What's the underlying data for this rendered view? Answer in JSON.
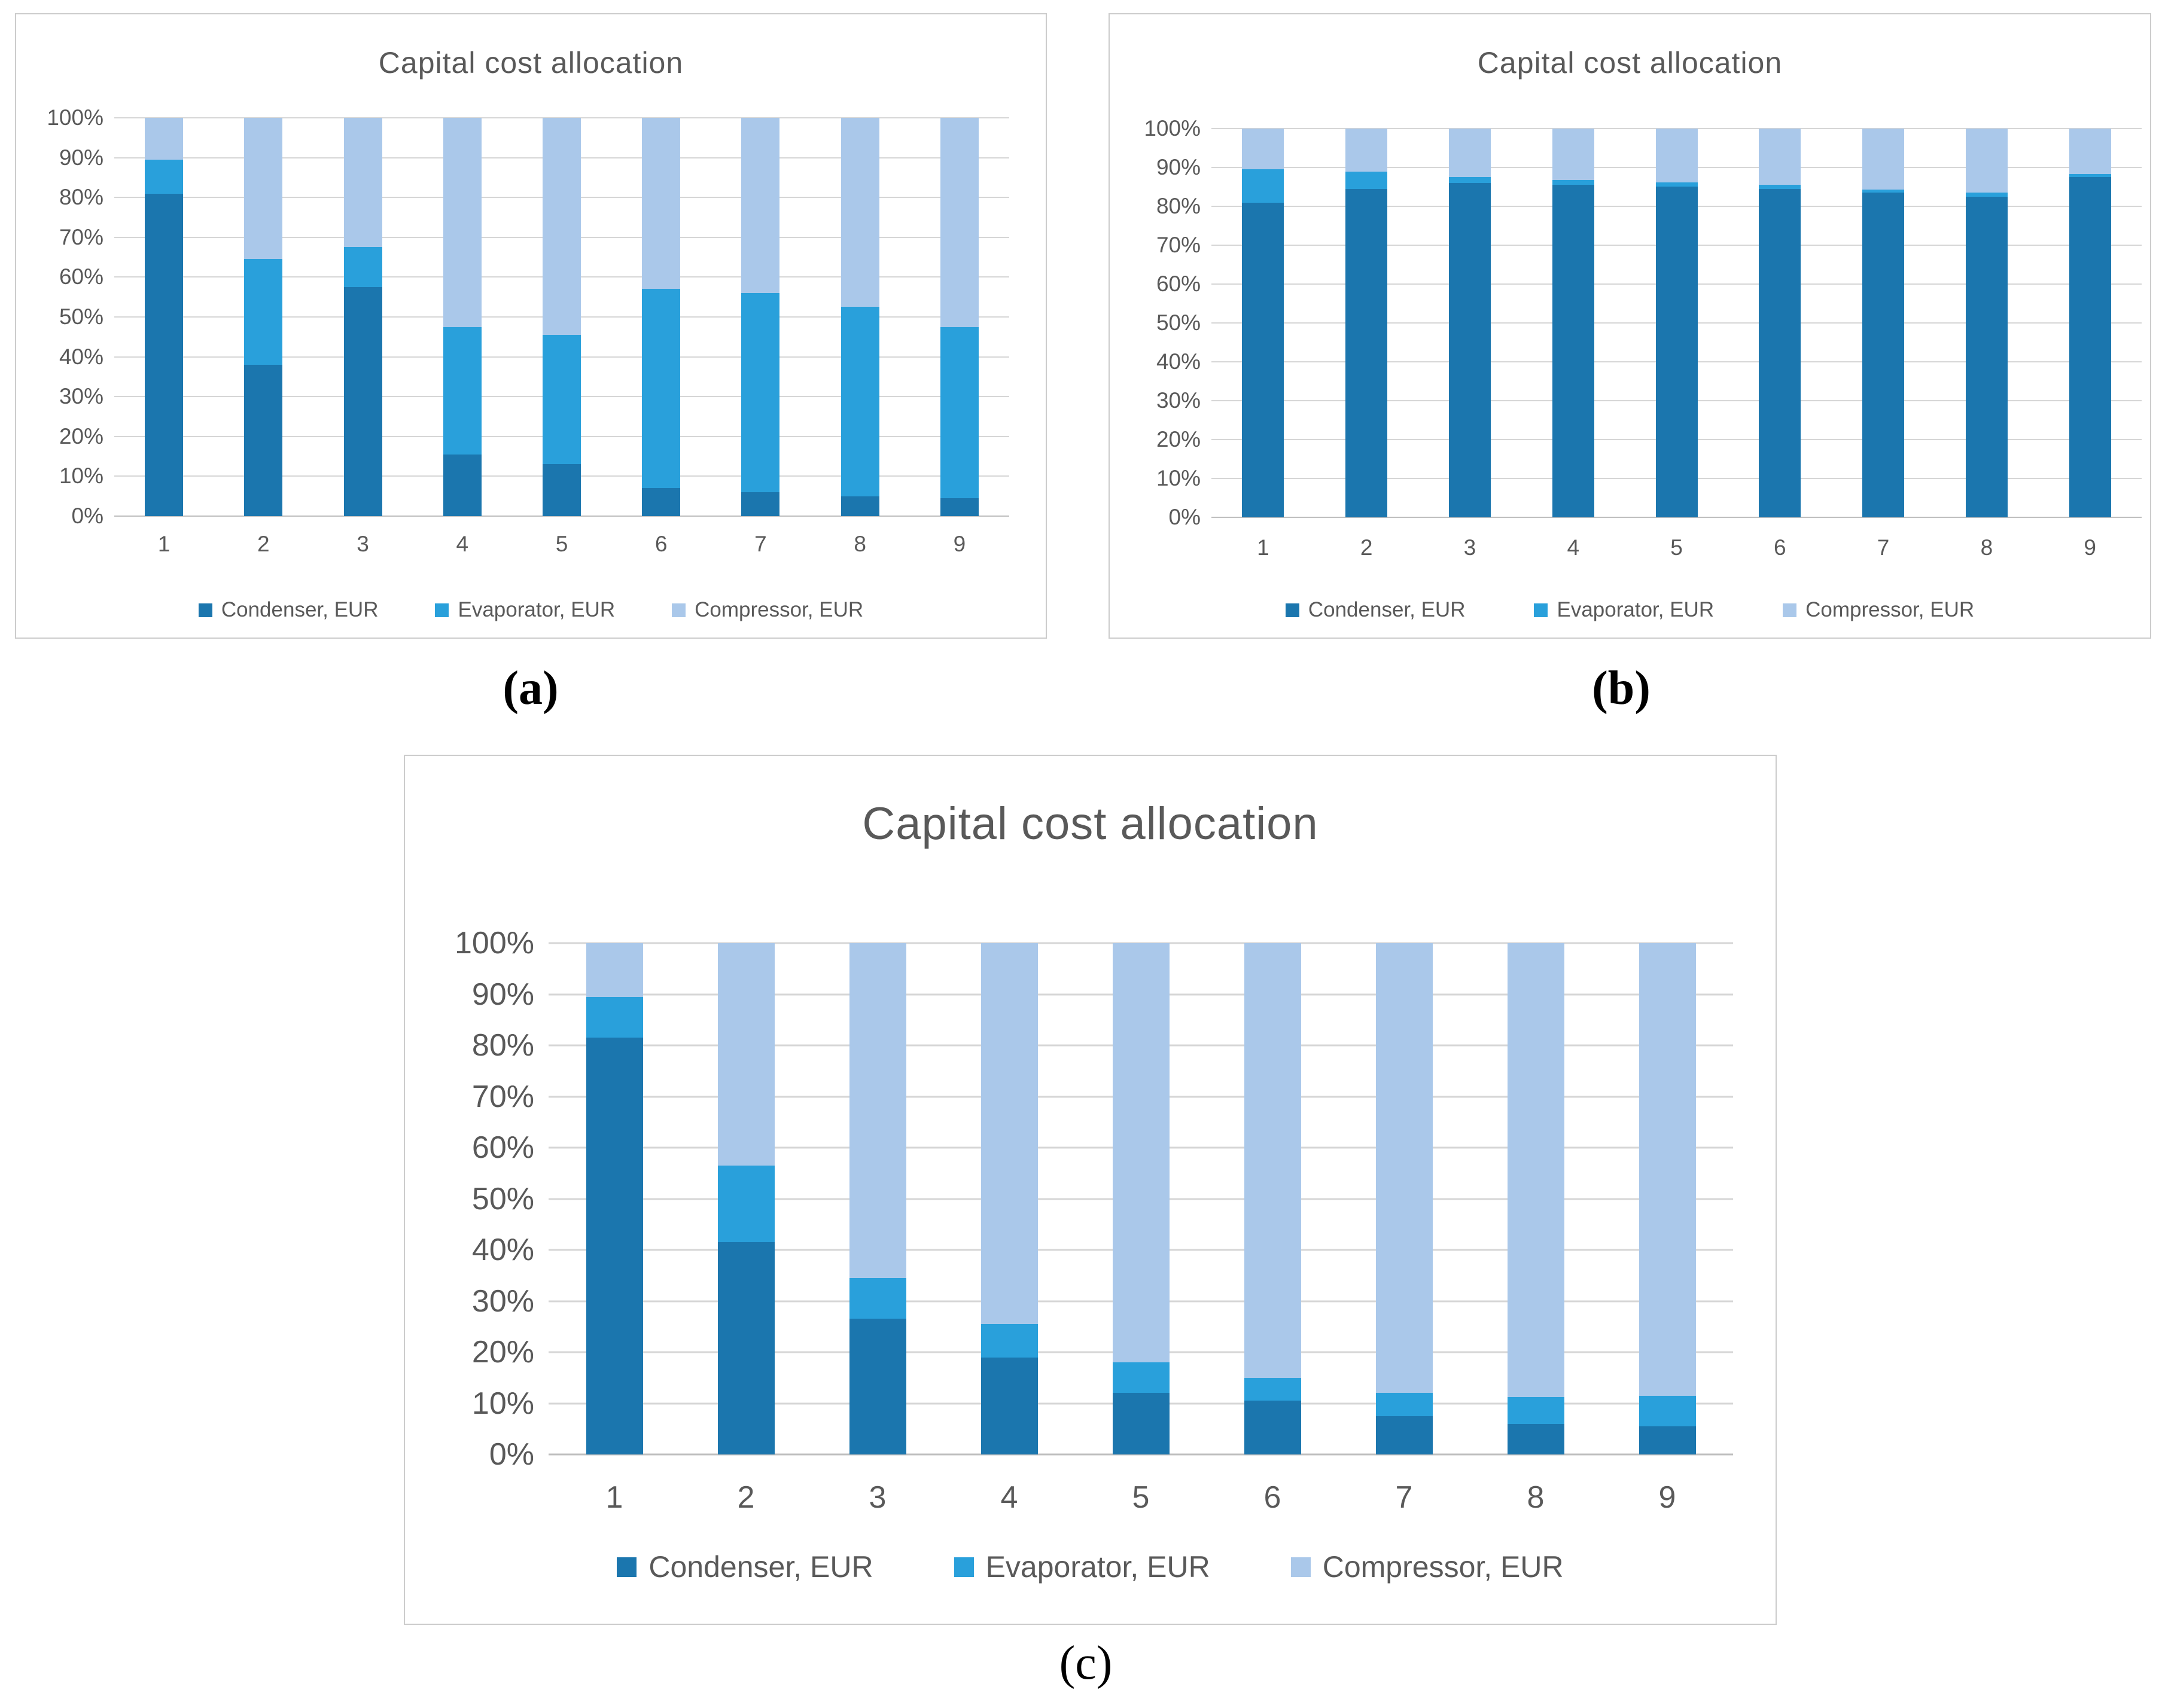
{
  "figure_labels": {
    "a": "(a)",
    "b": "(b)",
    "c": "(c)"
  },
  "colors": {
    "condenser": "#1b76ae",
    "evaporator": "#29a0db",
    "compressor": "#aac8ea",
    "gridline": "#d6d6d6",
    "axis_line": "#bfbfbf",
    "text": "#595959",
    "panel_border": "#cccccc"
  },
  "chart_data": [
    {
      "id": "a",
      "type": "bar",
      "subtype": "stacked-100-percent",
      "title": "Capital cost allocation",
      "categories": [
        "1",
        "2",
        "3",
        "4",
        "5",
        "6",
        "7",
        "8",
        "9"
      ],
      "series": [
        {
          "name": "Condenser, EUR",
          "color": "#1b76ae",
          "values": [
            81,
            38,
            57.5,
            15.5,
            13,
            7,
            6,
            5,
            4.5
          ]
        },
        {
          "name": "Evaporator, EUR",
          "color": "#29a0db",
          "values": [
            8.5,
            26.5,
            10,
            32,
            32.5,
            50,
            50,
            47.5,
            43
          ]
        },
        {
          "name": "Compressor, EUR",
          "color": "#aac8ea",
          "values": [
            10.5,
            35.5,
            32.5,
            52.5,
            54.5,
            43,
            44,
            47.5,
            52.5
          ]
        }
      ],
      "y_axis_ticks": [
        "0%",
        "10%",
        "20%",
        "30%",
        "40%",
        "50%",
        "60%",
        "70%",
        "80%",
        "90%",
        "100%"
      ],
      "ylim": [
        0,
        100
      ],
      "grid": true,
      "legend_position": "bottom"
    },
    {
      "id": "b",
      "type": "bar",
      "subtype": "stacked-100-percent",
      "title": "Capital cost allocation",
      "categories": [
        "1",
        "2",
        "3",
        "4",
        "5",
        "6",
        "7",
        "8",
        "9"
      ],
      "series": [
        {
          "name": "Condenser, EUR",
          "color": "#1b76ae",
          "values": [
            81,
            84.5,
            86,
            85.5,
            85,
            84.5,
            83.5,
            82.5,
            87.5
          ]
        },
        {
          "name": "Evaporator, EUR",
          "color": "#29a0db",
          "values": [
            8.5,
            4.5,
            1.5,
            1.3,
            1.2,
            1,
            0.8,
            1,
            0.8
          ]
        },
        {
          "name": "Compressor, EUR",
          "color": "#aac8ea",
          "values": [
            10.5,
            11,
            12.5,
            13.2,
            13.8,
            14.5,
            15.7,
            16.5,
            11.7
          ]
        }
      ],
      "y_axis_ticks": [
        "0%",
        "10%",
        "20%",
        "30%",
        "40%",
        "50%",
        "60%",
        "70%",
        "80%",
        "90%",
        "100%"
      ],
      "ylim": [
        0,
        100
      ],
      "grid": true,
      "legend_position": "bottom"
    },
    {
      "id": "c",
      "type": "bar",
      "subtype": "stacked-100-percent",
      "title": "Capital cost allocation",
      "categories": [
        "1",
        "2",
        "3",
        "4",
        "5",
        "6",
        "7",
        "8",
        "9"
      ],
      "series": [
        {
          "name": "Condenser, EUR",
          "color": "#1b76ae",
          "values": [
            81.5,
            41.5,
            26.5,
            19,
            12,
            10.5,
            7.5,
            6,
            5.5
          ]
        },
        {
          "name": "Evaporator, EUR",
          "color": "#29a0db",
          "values": [
            8,
            15,
            8,
            6.5,
            6,
            4.5,
            4.5,
            5.2,
            6
          ]
        },
        {
          "name": "Compressor, EUR",
          "color": "#aac8ea",
          "values": [
            10.5,
            43.5,
            65.5,
            74.5,
            82,
            85,
            88,
            88.8,
            88.5
          ]
        }
      ],
      "y_axis_ticks": [
        "0%",
        "10%",
        "20%",
        "30%",
        "40%",
        "50%",
        "60%",
        "70%",
        "80%",
        "90%",
        "100%"
      ],
      "ylim": [
        0,
        100
      ],
      "grid": true,
      "legend_position": "bottom"
    }
  ]
}
